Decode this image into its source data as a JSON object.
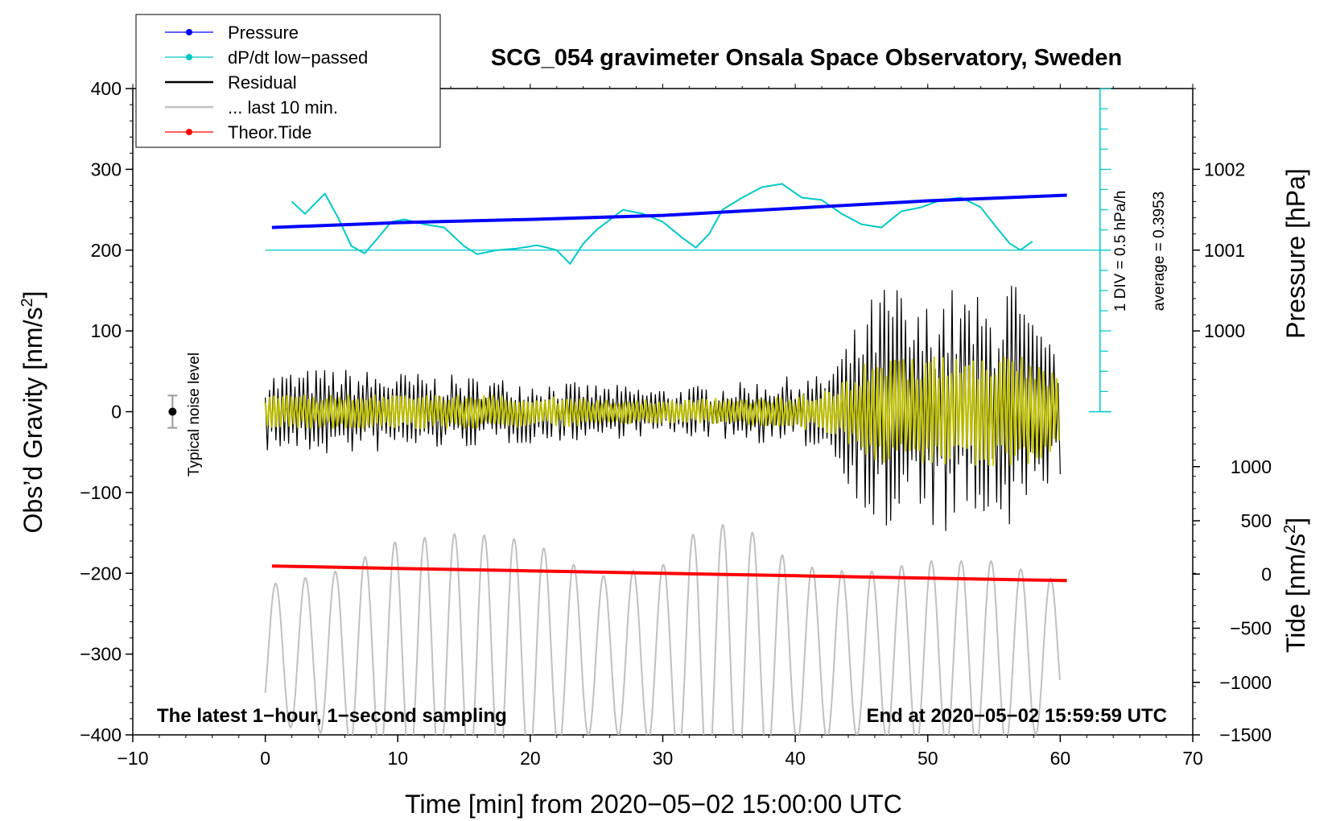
{
  "chart_data": {
    "type": "line",
    "title": "SCG_054 gravimeter Onsala Space Observatory, Sweden",
    "xlabel": "Time [min] from 2020−05−02 15:00:00 UTC",
    "ylabel_left": "Obs’d Gravity [nm/s²]",
    "ylabel_left_base": "Obs’d Gravity [nm/s",
    "ylabel_pressure_base": "Pressure [hPa]",
    "ylabel_tide_base": "Tide [nm/s",
    "ylabel_suffix": "]",
    "superscript": "2",
    "xlim": [
      -10,
      70
    ],
    "ylim": [
      -400,
      400
    ],
    "xticks": [
      -10,
      0,
      10,
      20,
      30,
      40,
      50,
      60,
      70
    ],
    "xtick_labels": [
      "−10",
      "0",
      "10",
      "20",
      "30",
      "40",
      "50",
      "60",
      "70"
    ],
    "yticks": [
      -400,
      -300,
      -200,
      -100,
      0,
      100,
      200,
      300,
      400
    ],
    "ytick_labels": [
      "−400",
      "−300",
      "−200",
      "−100",
      "0",
      "100",
      "200",
      "300",
      "400"
    ],
    "pressure_axis": {
      "ticks": [
        1000,
        1001,
        1002
      ],
      "tick_labels": [
        "1000",
        "1001",
        "1002"
      ],
      "gravity_equiv": [
        100,
        200,
        300
      ]
    },
    "tide_axis": {
      "ticks": [
        1000,
        500,
        0,
        -500,
        -1000,
        -1500
      ],
      "tick_labels": [
        "1000",
        "500",
        "0",
        "−500",
        "−1000",
        "−1500"
      ],
      "gravity_equiv": [
        -68,
        -135,
        -201,
        -268,
        -335,
        -400
      ]
    },
    "dpdt_scale": {
      "label": "1 DIV = 0.5 hPa/h",
      "average": "average = 0.3953",
      "x": 63,
      "y_range": [
        0,
        400
      ],
      "baseline": 200
    },
    "noise_marker": {
      "label": "Typical noise level",
      "x": -7,
      "y": 0,
      "err": 20
    },
    "annotations": {
      "left": "The latest 1−hour, 1−second sampling",
      "right": "End at 2020−05−02 15:59:59 UTC"
    },
    "legend": {
      "position": "top-left",
      "items": [
        {
          "name": "Pressure",
          "color": "#0000ff",
          "marker": true
        },
        {
          "name": "dP/dt low−passed",
          "color": "#00c8c8",
          "marker": true
        },
        {
          "name": "Residual",
          "color": "#000000",
          "marker": false
        },
        {
          "name": "... last 10 min.",
          "color": "#c0c0c0",
          "marker": false
        },
        {
          "name": "Theor.Tide",
          "color": "#ff0000",
          "marker": true
        }
      ]
    },
    "series": [
      {
        "name": "Pressure",
        "color": "#0000ff",
        "x": [
          0.5,
          10,
          20,
          30,
          40,
          50,
          60.5
        ],
        "y": [
          228,
          234,
          238,
          243,
          252,
          261,
          268
        ]
      },
      {
        "name": "dP/dt low−passed",
        "color": "#00c8c8",
        "x": [
          2,
          3,
          4.5,
          5.5,
          6.5,
          7.5,
          8.5,
          9.5,
          10.5,
          12,
          13.5,
          15,
          16,
          17.5,
          19,
          20.5,
          22,
          23,
          24,
          25,
          27,
          28.5,
          30,
          31.5,
          32.5,
          33.5,
          34.5,
          36,
          37.5,
          39,
          40.5,
          42,
          43.5,
          45,
          46.5,
          48,
          49.5,
          51,
          52.5,
          54,
          55,
          56.2,
          57,
          58
        ],
        "y": [
          260,
          245,
          270,
          240,
          205,
          196,
          215,
          235,
          238,
          232,
          228,
          205,
          195,
          200,
          202,
          206,
          200,
          183,
          208,
          225,
          250,
          245,
          235,
          215,
          203,
          220,
          250,
          265,
          278,
          282,
          265,
          262,
          245,
          232,
          228,
          248,
          253,
          262,
          265,
          253,
          232,
          208,
          200,
          212
        ]
      },
      {
        "name": "Residual",
        "color": "#000000",
        "envelope": {
          "x": [
            0,
            5,
            10,
            15,
            20,
            25,
            30,
            35,
            40,
            42,
            44,
            46,
            47.5,
            49,
            51,
            53,
            55,
            56,
            57,
            58,
            60
          ],
          "amp": [
            50,
            55,
            50,
            45,
            40,
            35,
            30,
            35,
            45,
            45,
            90,
            150,
            170,
            120,
            160,
            150,
            140,
            190,
            150,
            110,
            80
          ]
        },
        "period_min": 0.32
      },
      {
        "name": "Residual (yellow)",
        "color": "#c8c800",
        "envelope": {
          "x": [
            0,
            5,
            10,
            20,
            30,
            40,
            43,
            46,
            50,
            53,
            56,
            60
          ],
          "amp": [
            20,
            22,
            22,
            20,
            15,
            20,
            30,
            70,
            70,
            70,
            75,
            50
          ]
        },
        "period_min": 0.33
      },
      {
        "name": "... last 10 min.",
        "color": "#c0c0c0",
        "center": -300,
        "period_min": 2.25,
        "envelope": {
          "x": [
            0,
            5,
            10,
            15,
            20,
            25,
            30,
            33,
            36,
            40,
            45,
            50,
            55,
            60
          ],
          "amp": [
            85,
            100,
            140,
            150,
            140,
            95,
            110,
            160,
            160,
            110,
            100,
            115,
            115,
            90
          ]
        }
      },
      {
        "name": "Theor.Tide",
        "color": "#ff0000",
        "x": [
          0.5,
          10,
          20,
          30,
          40,
          50,
          60.5
        ],
        "y": [
          -191,
          -194,
          -197,
          -200,
          -203,
          -206,
          -209
        ]
      }
    ]
  }
}
